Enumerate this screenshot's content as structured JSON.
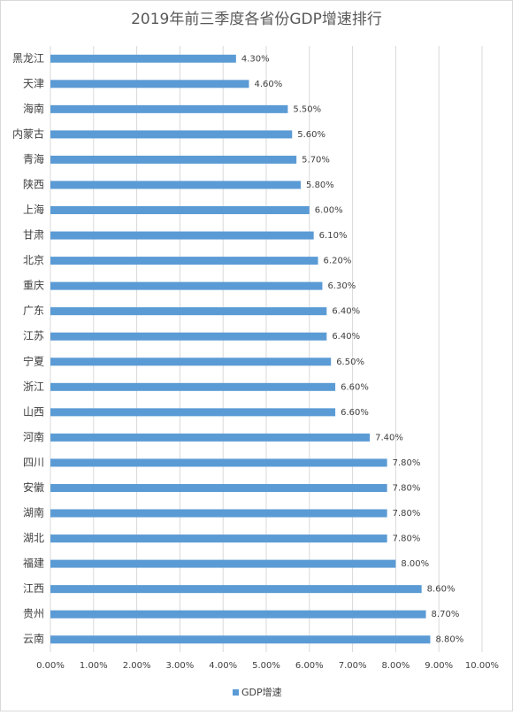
{
  "chart_data": {
    "type": "bar",
    "orientation": "horizontal",
    "title": "2019年前三季度各省份GDP增速排行",
    "categories": [
      "黑龙江",
      "天津",
      "海南",
      "内蒙古",
      "青海",
      "陕西",
      "上海",
      "甘肃",
      "北京",
      "重庆",
      "广东",
      "江苏",
      "宁夏",
      "浙江",
      "山西",
      "河南",
      "四川",
      "安徽",
      "湖南",
      "湖北",
      "福建",
      "江西",
      "贵州",
      "云南"
    ],
    "series": [
      {
        "name": "GDP增速",
        "color": "#5b9bd5",
        "values": [
          4.3,
          4.6,
          5.5,
          5.6,
          5.7,
          5.8,
          6.0,
          6.1,
          6.2,
          6.3,
          6.4,
          6.4,
          6.5,
          6.6,
          6.6,
          7.4,
          7.8,
          7.8,
          7.8,
          7.8,
          8.0,
          8.6,
          8.7,
          8.8
        ],
        "value_labels": [
          "4.30%",
          "4.60%",
          "5.50%",
          "5.60%",
          "5.70%",
          "5.80%",
          "6.00%",
          "6.10%",
          "6.20%",
          "6.30%",
          "6.40%",
          "6.40%",
          "6.50%",
          "6.60%",
          "6.60%",
          "7.40%",
          "7.80%",
          "7.80%",
          "7.80%",
          "7.80%",
          "8.00%",
          "8.60%",
          "8.70%",
          "8.80%"
        ]
      }
    ],
    "xlim": [
      0,
      10
    ],
    "xticks": [
      {
        "value": 0,
        "label": "0.00%"
      },
      {
        "value": 1,
        "label": "1.00%"
      },
      {
        "value": 2,
        "label": "2.00%"
      },
      {
        "value": 3,
        "label": "3.00%"
      },
      {
        "value": 4,
        "label": "4.00%"
      },
      {
        "value": 5,
        "label": "5.00%"
      },
      {
        "value": 6,
        "label": "6.00%"
      },
      {
        "value": 7,
        "label": "7.00%"
      },
      {
        "value": 8,
        "label": "8.00%"
      },
      {
        "value": 9,
        "label": "9.00%"
      },
      {
        "value": 10,
        "label": "10.00%"
      }
    ],
    "grid": true,
    "legend": "bottom"
  }
}
